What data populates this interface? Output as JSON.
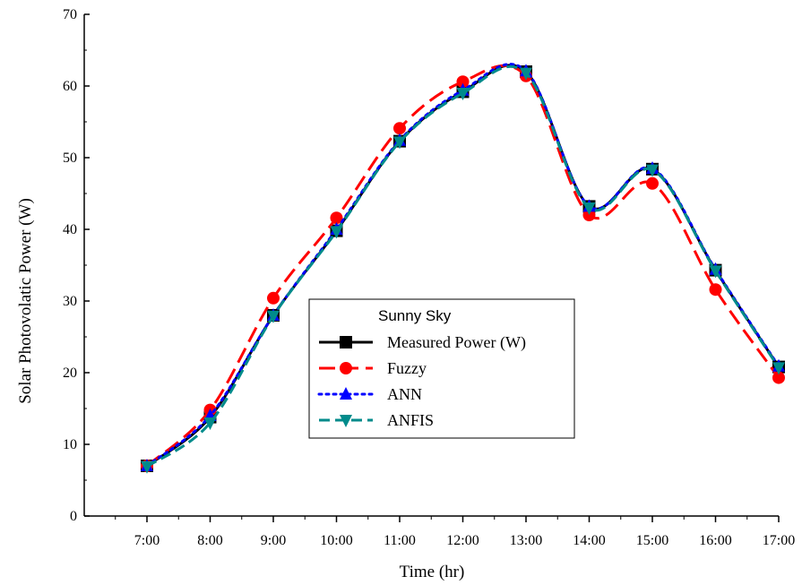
{
  "chart_data": {
    "type": "line",
    "title": "",
    "xlabel": "Time (hr)",
    "ylabel": "Solar Photovolatic Power (W)",
    "categories": [
      "7:00",
      "8:00",
      "9:00",
      "10:00",
      "11:00",
      "12:00",
      "13:00",
      "14:00",
      "15:00",
      "16:00",
      "17:00"
    ],
    "ylim": [
      0,
      70
    ],
    "yticks": [
      0,
      10,
      20,
      30,
      40,
      50,
      60,
      70
    ],
    "grid": false,
    "legend": {
      "title": "Sunny Sky",
      "placement": "center"
    },
    "series": [
      {
        "name": "Measured Power (W)",
        "color": "#000000",
        "marker": "square",
        "dash": "solid",
        "values": [
          7.0,
          13.8,
          28.0,
          39.8,
          52.3,
          59.2,
          62.0,
          43.2,
          48.4,
          34.3,
          20.8
        ]
      },
      {
        "name": "Fuzzy",
        "color": "#ff0000",
        "marker": "circle",
        "dash": "long-dash",
        "values": [
          7.0,
          14.8,
          30.4,
          41.6,
          54.1,
          60.6,
          61.4,
          42.0,
          46.4,
          31.6,
          19.3
        ]
      },
      {
        "name": "ANN",
        "color": "#0000ff",
        "marker": "triangle-up",
        "dash": "dot",
        "values": [
          7.0,
          14.0,
          28.0,
          40.0,
          52.4,
          59.4,
          62.1,
          43.2,
          48.5,
          34.4,
          20.9
        ]
      },
      {
        "name": "ANFIS",
        "color": "#008b8b",
        "marker": "triangle-down",
        "dash": "dash",
        "values": [
          6.9,
          13.0,
          27.9,
          39.7,
          52.2,
          59.0,
          61.8,
          43.0,
          48.3,
          34.2,
          20.7
        ]
      }
    ]
  }
}
